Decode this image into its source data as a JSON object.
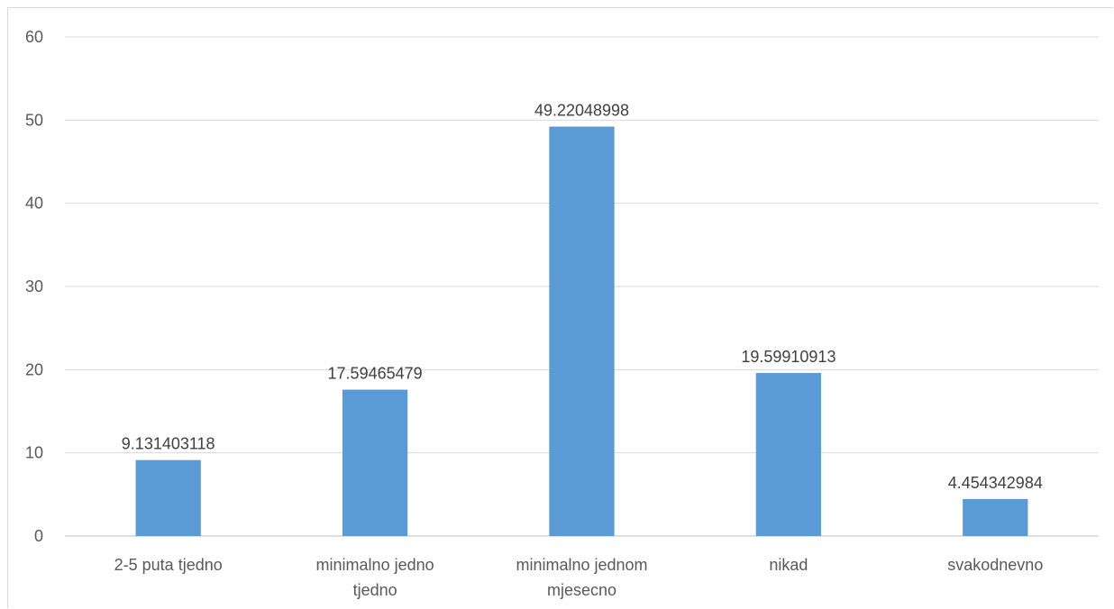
{
  "chart_data": {
    "type": "bar",
    "title": "",
    "xlabel": "",
    "ylabel": "",
    "ylim": [
      0,
      60
    ],
    "yticks": [
      0,
      10,
      20,
      30,
      40,
      50,
      60
    ],
    "grid": true,
    "legend": "none",
    "bar_color": "#5b9bd5",
    "categories": [
      [
        "2-5 puta tjedno"
      ],
      [
        "minimalno jedno",
        "tjedno"
      ],
      [
        "minimalno jednom",
        "mjesecno"
      ],
      [
        "nikad"
      ],
      [
        "svakodnevno"
      ]
    ],
    "values": [
      9.131403118,
      17.59465479,
      49.22048998,
      19.59910913,
      4.454342984
    ],
    "data_labels": [
      "9.131403118",
      "17.59465479",
      "49.22048998",
      "19.59910913",
      "4.454342984"
    ]
  }
}
